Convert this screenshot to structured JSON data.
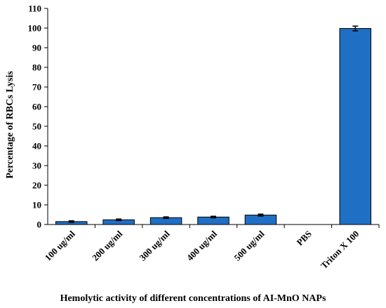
{
  "chart_data": {
    "type": "bar",
    "title": "",
    "xlabel": "Hemolytic activity of different concentrations of AI-MnO NAPs",
    "ylabel": "Percentage of RBCs Lysis",
    "categories": [
      "100 ug/ml",
      "200 ug/ml",
      "300 ug/ml",
      "400 ug/ml",
      "500 ug/ml",
      "PBS",
      "Triton X 100"
    ],
    "values": [
      1.5,
      2.4,
      3.5,
      3.8,
      4.8,
      0,
      99.8
    ],
    "errors": [
      0.4,
      0.4,
      0.4,
      0.4,
      0.5,
      0,
      1.2
    ],
    "ylim": [
      0,
      110
    ],
    "yticks": [
      0,
      10,
      20,
      30,
      40,
      50,
      60,
      70,
      80,
      90,
      100,
      110
    ],
    "bar_color": "#1f6fc5",
    "bar_edge_color": "#000000",
    "grid": false,
    "legend": "none"
  }
}
